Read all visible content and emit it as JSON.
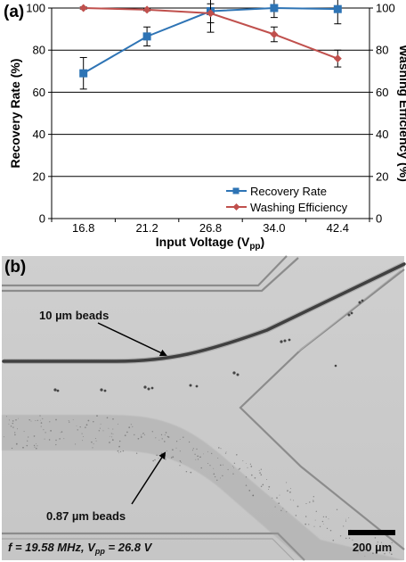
{
  "panel_a": {
    "label": "(a)",
    "chart_data": {
      "type": "line",
      "categories": [
        "16.8",
        "21.2",
        "26.8",
        "34.0",
        "42.4"
      ],
      "xlabel": "Input Voltage (V",
      "xlabel_sub": "pp",
      "xlabel_close": ")",
      "ylabel_left": "Recovery Rate (%)",
      "ylabel_right": "Washing Efficiency (%)",
      "ylim": [
        0,
        100
      ],
      "yticks": [
        0,
        20,
        40,
        60,
        80,
        100
      ],
      "grid": true,
      "legend_position": "bottom-right",
      "series": [
        {
          "name": "Recovery Rate",
          "color": "#2e74b5",
          "marker": "square",
          "values": [
            69,
            86.5,
            98.5,
            100,
            99.5
          ],
          "errors": [
            7.5,
            4.5,
            10,
            4.5,
            7
          ]
        },
        {
          "name": "Washing Efficiency",
          "color": "#c0504d",
          "marker": "diamond",
          "values": [
            100,
            99.2,
            97.5,
            87.5,
            76
          ],
          "errors": [
            0.5,
            0.5,
            4.5,
            3.5,
            4
          ]
        }
      ]
    }
  },
  "panel_b": {
    "label": "(b)",
    "annotations": {
      "beads_10": "10 µm beads",
      "beads_087": "0.87 µm beads"
    },
    "caption": {
      "f_eq": "f = 19.58 MHz, V",
      "sub": "pp",
      "rest": " = 26.8 V"
    },
    "scale_bar_label": "200 µm"
  }
}
